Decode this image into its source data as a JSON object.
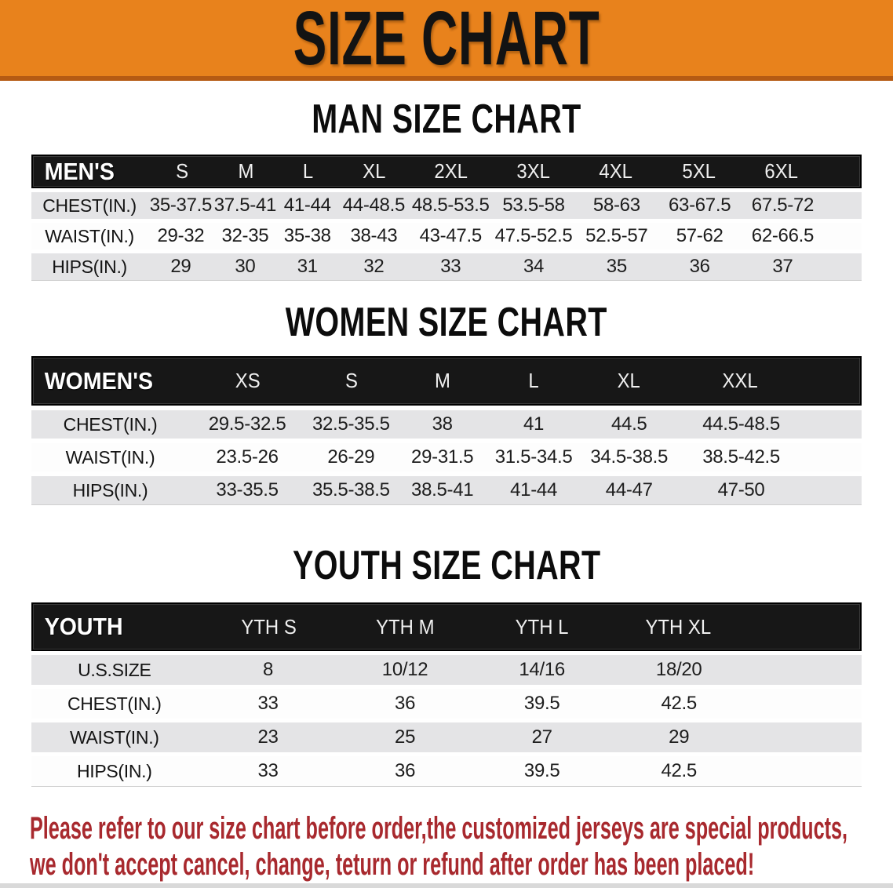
{
  "banner": {
    "title": "SIZE CHART",
    "bg_color": "#e8821c",
    "border_color": "#b55a13",
    "text_color": "#131313"
  },
  "colors": {
    "table_header_bg": "#171717",
    "row_gray": "#e4e4e6",
    "row_white": "#fdfdfd",
    "disclaimer_red": "#a8292e"
  },
  "sections": [
    {
      "title": "MAN SIZE CHART",
      "header_label": "MEN'S",
      "columns": [
        "S",
        "M",
        "L",
        "XL",
        "2XL",
        "3XL",
        "4XL",
        "5XL",
        "6XL"
      ],
      "rows": [
        {
          "label": "CHEST(IN.)",
          "values": [
            "35-37.5",
            "37.5-41",
            "41-44",
            "44-48.5",
            "48.5-53.5",
            "53.5-58",
            "58-63",
            "63-67.5",
            "67.5-72"
          ]
        },
        {
          "label": "WAIST(IN.)",
          "values": [
            "29-32",
            "32-35",
            "35-38",
            "38-43",
            "43-47.5",
            "47.5-52.5",
            "52.5-57",
            "57-62",
            "62-66.5"
          ]
        },
        {
          "label": "HIPS(IN.)",
          "values": [
            "29",
            "30",
            "31",
            "32",
            "33",
            "34",
            "35",
            "36",
            "37"
          ]
        }
      ]
    },
    {
      "title": "WOMEN SIZE CHART",
      "header_label": "WOMEN'S",
      "columns": [
        "XS",
        "S",
        "M",
        "L",
        "XL",
        "XXL"
      ],
      "rows": [
        {
          "label": "CHEST(IN.)",
          "values": [
            "29.5-32.5",
            "32.5-35.5",
            "38",
            "41",
            "44.5",
            "44.5-48.5"
          ]
        },
        {
          "label": "WAIST(IN.)",
          "values": [
            "23.5-26",
            "26-29",
            "29-31.5",
            "31.5-34.5",
            "34.5-38.5",
            "38.5-42.5"
          ]
        },
        {
          "label": "HIPS(IN.)",
          "values": [
            "33-35.5",
            "35.5-38.5",
            "38.5-41",
            "41-44",
            "44-47",
            "47-50"
          ]
        }
      ]
    },
    {
      "title": "YOUTH SIZE CHART",
      "header_label": "YOUTH",
      "columns": [
        "YTH S",
        "YTH M",
        "YTH L",
        "YTH XL"
      ],
      "rows": [
        {
          "label": "U.S.SIZE",
          "values": [
            "8",
            "10/12",
            "14/16",
            "18/20"
          ]
        },
        {
          "label": "CHEST(IN.)",
          "values": [
            "33",
            "36",
            "39.5",
            "42.5"
          ]
        },
        {
          "label": "WAIST(IN.)",
          "values": [
            "23",
            "25",
            "27",
            "29"
          ]
        },
        {
          "label": "HIPS(IN.)",
          "values": [
            "33",
            "36",
            "39.5",
            "42.5"
          ]
        }
      ]
    }
  ],
  "disclaimer": {
    "line1": "Please refer to our size chart before order,the customized jerseys are special products,",
    "line2": "we don't accept cancel, change, teturn or refund after order has been placed!"
  }
}
